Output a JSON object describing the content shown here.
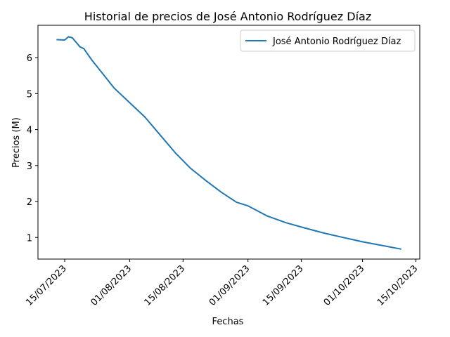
{
  "chart_data": {
    "type": "line",
    "title": "Historial de precios de José Antonio Rodríguez Díaz",
    "xlabel": "Fechas",
    "ylabel": "Precios (M)",
    "xlim": [
      "2023-07-08",
      "2023-10-16"
    ],
    "ylim": [
      0.4,
      6.9
    ],
    "x_ticks": [
      "15/07/2023",
      "01/08/2023",
      "15/08/2023",
      "01/09/2023",
      "15/09/2023",
      "01/10/2023",
      "15/10/2023"
    ],
    "x_tick_dates": [
      "2023-07-15",
      "2023-08-01",
      "2023-08-15",
      "2023-09-01",
      "2023-09-15",
      "2023-10-01",
      "2023-10-15"
    ],
    "y_ticks": [
      1,
      2,
      3,
      4,
      5,
      6
    ],
    "legend": {
      "position": "top-right"
    },
    "grid": false,
    "series": [
      {
        "name": "José Antonio Rodríguez Díaz",
        "color": "#1f77b4",
        "x": [
          "2023-07-13",
          "2023-07-15",
          "2023-07-16",
          "2023-07-17",
          "2023-07-19",
          "2023-07-20",
          "2023-07-22",
          "2023-07-25",
          "2023-07-28",
          "2023-08-01",
          "2023-08-05",
          "2023-08-09",
          "2023-08-13",
          "2023-08-17",
          "2023-08-21",
          "2023-08-25",
          "2023-08-29",
          "2023-09-01",
          "2023-09-06",
          "2023-09-11",
          "2023-09-16",
          "2023-09-21",
          "2023-09-26",
          "2023-10-01",
          "2023-10-06",
          "2023-10-11"
        ],
        "y": [
          6.5,
          6.49,
          6.58,
          6.55,
          6.3,
          6.25,
          5.95,
          5.55,
          5.15,
          4.75,
          4.35,
          3.85,
          3.35,
          2.92,
          2.58,
          2.26,
          1.98,
          1.88,
          1.6,
          1.41,
          1.26,
          1.12,
          1.0,
          0.88,
          0.78,
          0.68
        ]
      }
    ]
  }
}
